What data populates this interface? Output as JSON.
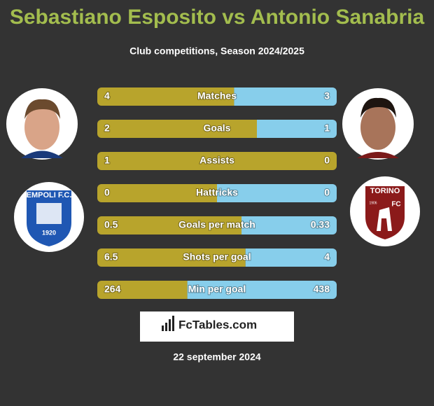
{
  "header": {
    "title": "Sebastiano Esposito vs Antonio Sanabria",
    "subtitle": "Club competitions, Season 2024/2025"
  },
  "logos": {
    "left": [
      "EMPOLI F.C.",
      "1920"
    ],
    "right": [
      "TORINO",
      "1906",
      "FC"
    ]
  },
  "colors": {
    "left": "#b8a42c",
    "right": "#87ceeb"
  },
  "rows": [
    {
      "label": "Matches",
      "left": 4,
      "right": 3
    },
    {
      "label": "Goals",
      "left": 2,
      "right": 1
    },
    {
      "label": "Assists",
      "left": 1,
      "right": 0
    },
    {
      "label": "Hattricks",
      "left": 0,
      "right": 0
    },
    {
      "label": "Goals per match",
      "left": 0.5,
      "right": 0.33
    },
    {
      "label": "Shots per goal",
      "left": 6.5,
      "right": 4
    },
    {
      "label": "Min per goal",
      "left": 264,
      "right": 438
    }
  ],
  "brand": "FcTables.com",
  "date": "22 september 2024"
}
